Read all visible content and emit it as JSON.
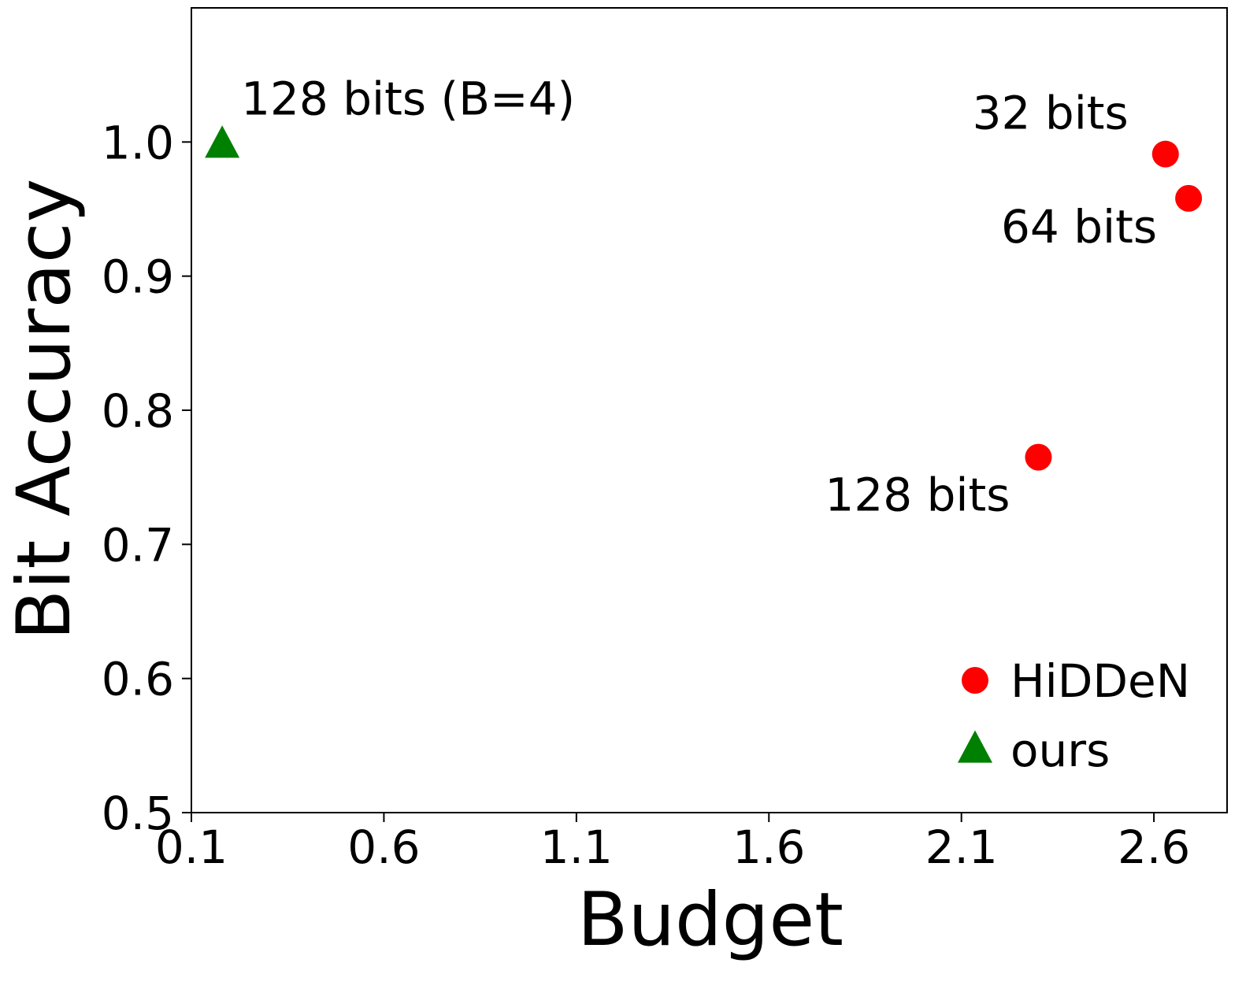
{
  "chart_data": {
    "type": "scatter",
    "title": "",
    "xlabel": "Budget",
    "ylabel": "Bit Accuracy",
    "xlim": [
      0.1,
      2.79
    ],
    "ylim": [
      0.5,
      1.1
    ],
    "xticks": [
      0.1,
      0.6,
      1.1,
      1.6,
      2.1,
      2.6
    ],
    "xtick_labels": [
      "0.1",
      "0.6",
      "1.1",
      "1.6",
      "2.1",
      "2.6"
    ],
    "yticks": [
      0.5,
      0.6,
      0.7,
      0.8,
      0.9,
      1.0
    ],
    "ytick_labels": [
      "0.5",
      "0.6",
      "0.7",
      "0.8",
      "0.9",
      "1.0"
    ],
    "grid": false,
    "legend_position": "lower-right",
    "series": [
      {
        "name": "HiDDeN",
        "marker": "circle",
        "color": "#ff0000",
        "points": [
          {
            "x": 2.63,
            "y": 0.991,
            "label": "32 bits"
          },
          {
            "x": 2.69,
            "y": 0.958,
            "label": "64 bits"
          },
          {
            "x": 2.3,
            "y": 0.765,
            "label": "128 bits"
          }
        ]
      },
      {
        "name": "ours",
        "marker": "triangle",
        "color": "#008000",
        "points": [
          {
            "x": 0.18,
            "y": 0.998,
            "label": "128 bits (B=4)"
          }
        ]
      }
    ]
  }
}
